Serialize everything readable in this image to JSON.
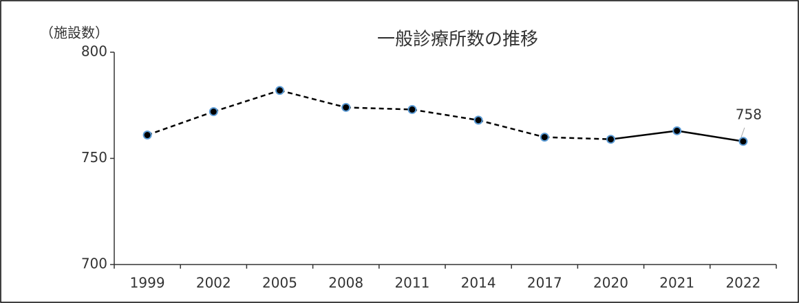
{
  "chart_data": {
    "type": "line",
    "title": "一般診療所数の推移",
    "y_label": "（施設数）",
    "categories": [
      "1999",
      "2002",
      "2005",
      "2008",
      "2011",
      "2014",
      "2017",
      "2020",
      "2021",
      "2022"
    ],
    "values": [
      761,
      772,
      782,
      774,
      773,
      768,
      760,
      759,
      763,
      758
    ],
    "segment_styles": [
      "dashed",
      "dashed",
      "dashed",
      "dashed",
      "dashed",
      "dashed",
      "dashed",
      "solid",
      "solid"
    ],
    "data_labels": [
      9
    ],
    "color": "#000000",
    "marker_edge_color": "#5b9bd5",
    "ylim": [
      700,
      800
    ],
    "yticks": [
      700,
      750,
      800
    ],
    "grid": false
  }
}
